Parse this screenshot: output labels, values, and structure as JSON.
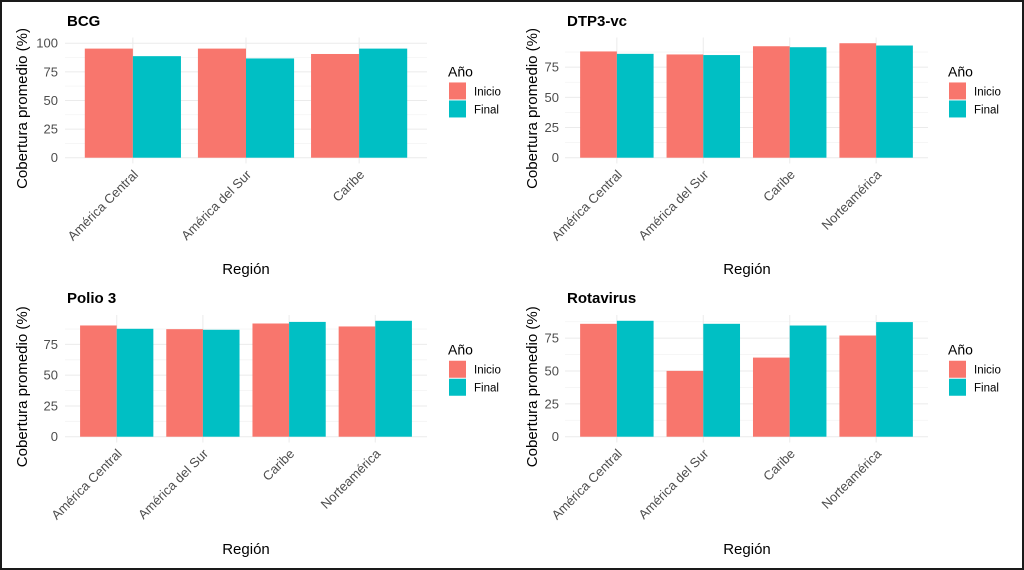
{
  "chart_data": [
    {
      "type": "bar",
      "title": "BCG",
      "xlabel": "Región",
      "ylabel": "Cobertura promedio (%)",
      "categories": [
        "América Central",
        "América del Sur",
        "Caribe"
      ],
      "series": [
        {
          "name": "Inicio",
          "color": "#F8766D",
          "values": [
            95.3,
            95.3,
            90.6
          ]
        },
        {
          "name": "Final",
          "color": "#00BFC4",
          "values": [
            88.7,
            86.7,
            95.3
          ]
        }
      ],
      "yticks": [
        "0",
        "25",
        "50",
        "75",
        "100"
      ],
      "ylim": [
        0,
        100
      ],
      "grid": true,
      "legend": {
        "title": "Año",
        "entries": [
          "Inicio",
          "Final"
        ],
        "placement": "right"
      }
    },
    {
      "type": "bar",
      "title": "DTP3-vc",
      "xlabel": "Región",
      "ylabel": "Cobertura promedio (%)",
      "categories": [
        "América Central",
        "América del Sur",
        "Caribe",
        "Norteamérica"
      ],
      "series": [
        {
          "name": "Inicio",
          "color": "#F8766D",
          "values": [
            88.0,
            85.5,
            92.3,
            94.8
          ]
        },
        {
          "name": "Final",
          "color": "#00BFC4",
          "values": [
            86.0,
            85.0,
            91.5,
            92.9
          ]
        }
      ],
      "yticks": [
        "0",
        "25",
        "50",
        "75"
      ],
      "ylim": [
        0,
        94.8
      ],
      "grid": true,
      "legend": {
        "title": "Año",
        "entries": [
          "Inicio",
          "Final"
        ],
        "placement": "right"
      }
    },
    {
      "type": "bar",
      "title": "Polio 3",
      "xlabel": "Región",
      "ylabel": "Cobertura promedio (%)",
      "categories": [
        "América Central",
        "América del Sur",
        "Caribe",
        "Norteamérica"
      ],
      "series": [
        {
          "name": "Inicio",
          "color": "#F8766D",
          "values": [
            90.4,
            87.4,
            92.0,
            89.6
          ]
        },
        {
          "name": "Final",
          "color": "#00BFC4",
          "values": [
            87.7,
            86.9,
            93.3,
            94.2
          ]
        }
      ],
      "yticks": [
        "0",
        "25",
        "50",
        "75"
      ],
      "ylim": [
        0,
        94.2
      ],
      "grid": true,
      "legend": {
        "title": "Año",
        "entries": [
          "Inicio",
          "Final"
        ],
        "placement": "right"
      }
    },
    {
      "type": "bar",
      "title": "Rotavirus",
      "xlabel": "Región",
      "ylabel": "Cobertura promedio (%)",
      "categories": [
        "América Central",
        "América del Sur",
        "Caribe",
        "Norteamérica"
      ],
      "series": [
        {
          "name": "Inicio",
          "color": "#F8766D",
          "values": [
            85.9,
            50.1,
            60.2,
            77.0
          ]
        },
        {
          "name": "Final",
          "color": "#00BFC4",
          "values": [
            88.2,
            85.9,
            84.6,
            87.2
          ]
        }
      ],
      "yticks": [
        "0",
        "25",
        "50",
        "75"
      ],
      "ylim": [
        0,
        88.2
      ],
      "grid": true,
      "legend": {
        "title": "Año",
        "entries": [
          "Inicio",
          "Final"
        ],
        "placement": "right"
      }
    }
  ]
}
